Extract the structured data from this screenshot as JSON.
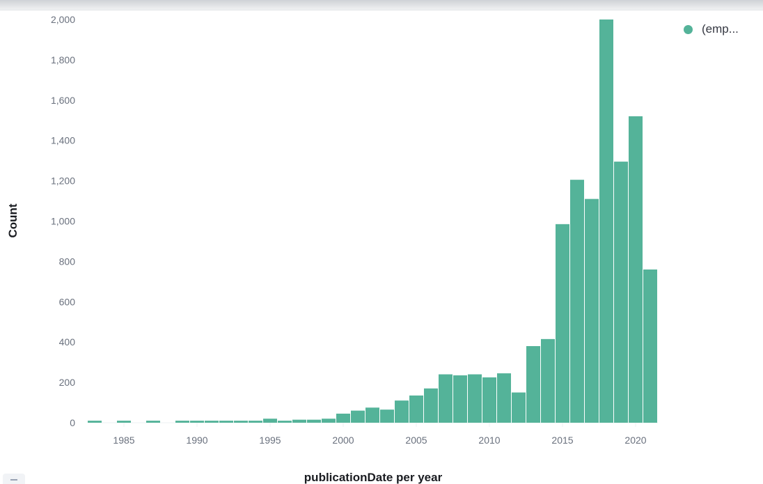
{
  "chart_data": {
    "type": "bar",
    "xlabel": "publicationDate per year",
    "ylabel": "Count",
    "ylim": [
      0,
      2000
    ],
    "xlim": [
      1983,
      2022
    ],
    "y_ticks": [
      0,
      200,
      400,
      600,
      800,
      1000,
      1200,
      1400,
      1600,
      1800,
      2000
    ],
    "y_tick_labels": [
      "0",
      "200",
      "400",
      "600",
      "800",
      "1,000",
      "1,200",
      "1,400",
      "1,600",
      "1,800",
      "2,000"
    ],
    "x_ticks": [
      1985,
      1990,
      1995,
      2000,
      2005,
      2010,
      2015,
      2020
    ],
    "x_tick_labels": [
      "1985",
      "1990",
      "1995",
      "2000",
      "2005",
      "2010",
      "2015",
      "2020"
    ],
    "grid": false,
    "legend": "top-right",
    "color": "#54b399",
    "series": [
      {
        "name": "(emp...",
        "points": [
          {
            "x": 1983,
            "y": 10
          },
          {
            "x": 1985,
            "y": 10
          },
          {
            "x": 1987,
            "y": 10
          },
          {
            "x": 1989,
            "y": 10
          },
          {
            "x": 1990,
            "y": 10
          },
          {
            "x": 1991,
            "y": 10
          },
          {
            "x": 1992,
            "y": 10
          },
          {
            "x": 1993,
            "y": 10
          },
          {
            "x": 1994,
            "y": 10
          },
          {
            "x": 1995,
            "y": 20
          },
          {
            "x": 1996,
            "y": 10
          },
          {
            "x": 1997,
            "y": 15
          },
          {
            "x": 1998,
            "y": 15
          },
          {
            "x": 1999,
            "y": 20
          },
          {
            "x": 2000,
            "y": 45
          },
          {
            "x": 2001,
            "y": 60
          },
          {
            "x": 2002,
            "y": 75
          },
          {
            "x": 2003,
            "y": 65
          },
          {
            "x": 2004,
            "y": 110
          },
          {
            "x": 2005,
            "y": 135
          },
          {
            "x": 2006,
            "y": 170
          },
          {
            "x": 2007,
            "y": 240
          },
          {
            "x": 2008,
            "y": 235
          },
          {
            "x": 2009,
            "y": 240
          },
          {
            "x": 2010,
            "y": 225
          },
          {
            "x": 2011,
            "y": 245
          },
          {
            "x": 2012,
            "y": 150
          },
          {
            "x": 2013,
            "y": 380
          },
          {
            "x": 2014,
            "y": 415
          },
          {
            "x": 2015,
            "y": 985
          },
          {
            "x": 2016,
            "y": 1205
          },
          {
            "x": 2017,
            "y": 1110
          },
          {
            "x": 2018,
            "y": 2000
          },
          {
            "x": 2019,
            "y": 1295
          },
          {
            "x": 2020,
            "y": 1520
          },
          {
            "x": 2021,
            "y": 760
          }
        ]
      }
    ]
  }
}
